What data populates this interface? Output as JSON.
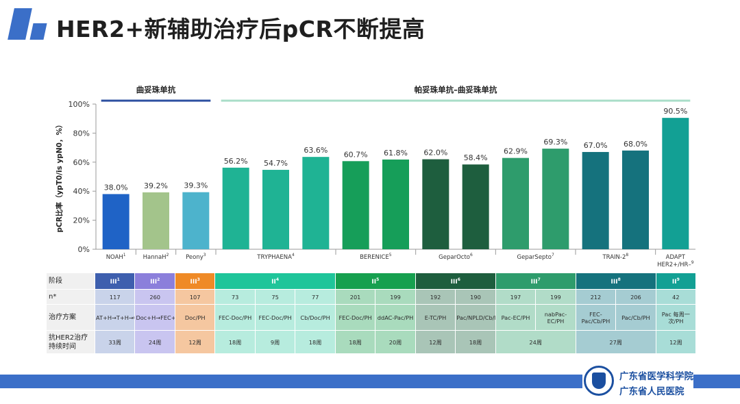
{
  "slide": {
    "title": "HER2+新辅助治疗后pCR不断提高"
  },
  "chart_data": {
    "type": "bar",
    "ylabel": "pCR比率（ypT0/is ypN0，%）",
    "ylim": [
      0,
      100
    ],
    "yticks": [
      "0%",
      "20%",
      "40%",
      "60%",
      "80%",
      "100%"
    ],
    "group_labels": [
      {
        "text": "曲妥珠单抗",
        "color": "#2c4fa0",
        "from": 0,
        "to": 2
      },
      {
        "text": "帕妥珠单抗–曲妥珠单抗",
        "color": "#a9ddc8",
        "from": 3,
        "to": 14
      }
    ],
    "values": [
      38.0,
      39.2,
      39.3,
      56.2,
      54.7,
      63.6,
      60.7,
      61.8,
      62.0,
      58.4,
      62.9,
      69.3,
      67.0,
      68.0,
      90.5
    ],
    "value_labels": [
      "38.0%",
      "39.2%",
      "39.3%",
      "56.2%",
      "54.7%",
      "63.6%",
      "60.7%",
      "61.8%",
      "62.0%",
      "58.4%",
      "62.9%",
      "69.3%",
      "67.0%",
      "68.0%",
      "90.5%"
    ],
    "colors": [
      "#1f63c6",
      "#a3c48b",
      "#4db3cc",
      "#1fb394",
      "#1fb394",
      "#1fb394",
      "#169e59",
      "#169e59",
      "#1e5e3e",
      "#1e5e3e",
      "#2e9c6c",
      "#2e9c6c",
      "#15727d",
      "#15727d",
      "#12a094"
    ],
    "studies": [
      {
        "name": "NOAH",
        "sup": "1",
        "from": 0,
        "to": 0
      },
      {
        "name": "HannaH",
        "sup": "2",
        "from": 1,
        "to": 1
      },
      {
        "name": "Peony",
        "sup": "3",
        "from": 2,
        "to": 2
      },
      {
        "name": "TRYPHAENA",
        "sup": "4",
        "from": 3,
        "to": 5
      },
      {
        "name": "BERENICE",
        "sup": "5",
        "from": 6,
        "to": 7
      },
      {
        "name": "GeparOcto",
        "sup": "6",
        "from": 8,
        "to": 9
      },
      {
        "name": "GeparSepto",
        "sup": "7",
        "from": 10,
        "to": 11
      },
      {
        "name": "TRAIN-2",
        "sup": "8",
        "from": 12,
        "to": 13
      },
      {
        "name": "ADAPT",
        "line2": "HER2+/HR–",
        "sup": "9",
        "from": 14,
        "to": 14
      }
    ]
  },
  "table": {
    "row_labels": [
      "阶段",
      "n*",
      "治疗方案",
      "抗HER2治疗持续时间"
    ],
    "phases": [
      {
        "label": "III",
        "sup": "1",
        "span": 1,
        "color": "#3e5fae",
        "light": "#c9d3ea"
      },
      {
        "label": "III",
        "sup": "2",
        "span": 1,
        "color": "#8b7fdb",
        "light": "#c9c5f0"
      },
      {
        "label": "III",
        "sup": "3",
        "span": 1,
        "color": "#ef8a26",
        "light": "#f5c7a0"
      },
      {
        "label": "II",
        "sup": "4",
        "span": 3,
        "color": "#1fc59a",
        "light": "#b7ecde"
      },
      {
        "label": "II",
        "sup": "5",
        "span": 2,
        "color": "#16a04f",
        "light": "#a9dbbd"
      },
      {
        "label": "III",
        "sup": "6",
        "span": 2,
        "color": "#1e5e3e",
        "light": "#a9c5b7"
      },
      {
        "label": "III",
        "sup": "7",
        "span": 2,
        "color": "#2e9c6c",
        "light": "#b1dcc8"
      },
      {
        "label": "III",
        "sup": "8",
        "span": 2,
        "color": "#15727d",
        "light": "#a5ccd2"
      },
      {
        "label": "II",
        "sup": "9",
        "span": 1,
        "color": "#12a094",
        "light": "#a8ddd7"
      }
    ],
    "n": [
      "117",
      "260",
      "107",
      "73",
      "75",
      "77",
      "201",
      "199",
      "192",
      "190",
      "197",
      "199",
      "212",
      "206",
      "42"
    ],
    "regimens": [
      "AT+H→T+H→CMF+H",
      "Doc+H→FEC+H",
      "Doc/PH",
      "FEC-Doc/PH",
      "FEC-Doc/PH",
      "Cb/Doc/PH",
      "FEC-Doc/PH",
      "ddAC-Pac/PH",
      "E-TC/PH",
      "Pac/NPLD/Cb/PH",
      "Pac-EC/PH",
      "nabPac-EC/PH",
      "FEC-Pac/Cb/PH",
      "Pac/Cb/PH",
      "Pac 每周一次/PH"
    ],
    "durations": [
      {
        "text": "33周",
        "span": 1
      },
      {
        "text": "24周",
        "span": 1
      },
      {
        "text": "12周",
        "span": 1
      },
      {
        "text": "18周",
        "span": 1
      },
      {
        "text": "9周",
        "span": 1
      },
      {
        "text": "18周",
        "span": 1
      },
      {
        "text": "18周",
        "span": 1
      },
      {
        "text": "20周",
        "span": 1
      },
      {
        "text": "12周",
        "span": 1
      },
      {
        "text": "18周",
        "span": 1
      },
      {
        "text": "24周",
        "span": 2
      },
      {
        "text": "27周",
        "span": 2
      },
      {
        "text": "12周",
        "span": 1
      }
    ]
  },
  "logo": {
    "line1": "广东省医学科学院",
    "line2": "广东省人民医院"
  }
}
